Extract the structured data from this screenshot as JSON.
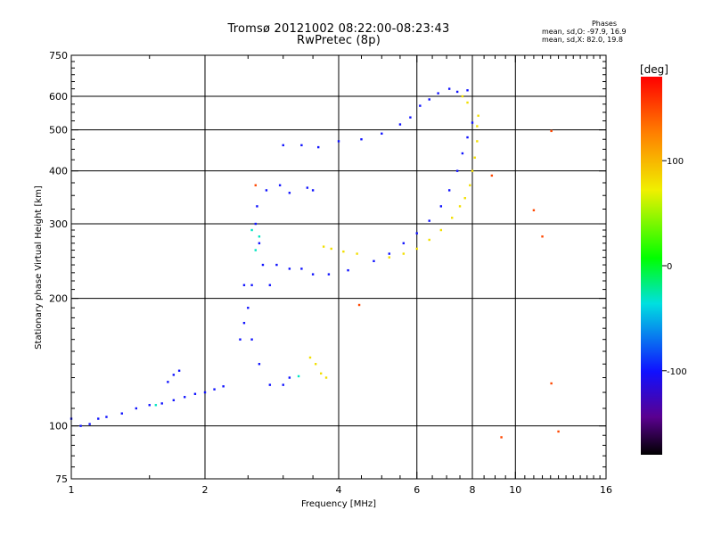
{
  "title": {
    "line1": "Tromsø 20121002 08:22:00-08:23:43",
    "line2": "RwPretec (8p)"
  },
  "stats": {
    "header": "Phases",
    "line_o": "mean, sd,O: -97.9, 16.9",
    "line_x": "mean, sd,X:  82.0, 19.8"
  },
  "colorbar": {
    "unit": "[deg]",
    "ticks": [
      "100",
      "0",
      "-100"
    ],
    "tick_values": [
      100,
      0,
      -100
    ],
    "range": [
      -180,
      180
    ],
    "colormap": "rainbow (black → purple → blue → cyan → green → yellow → orange → red)"
  },
  "chart_data": {
    "type": "scatter",
    "xlabel": "Frequency [MHz]",
    "ylabel": "Stationary phase Virtual Height [km]",
    "xscale": "log",
    "yscale": "log",
    "xlim": [
      1,
      16
    ],
    "ylim": [
      75,
      750
    ],
    "x_ticks": [
      "1",
      "2",
      "4",
      "6",
      "8",
      "10",
      "16"
    ],
    "x_tick_values": [
      1,
      2,
      4,
      6,
      8,
      10,
      16
    ],
    "y_ticks": [
      "750",
      "600",
      "500",
      "400",
      "300",
      "200",
      "100",
      "75"
    ],
    "y_tick_values": [
      750,
      600,
      500,
      400,
      300,
      200,
      100,
      75
    ],
    "grid_x": [
      2,
      4,
      6,
      8,
      10
    ],
    "grid_y": [
      600,
      500,
      400,
      300,
      200,
      100
    ],
    "series": [
      {
        "color_hint": "blue",
        "phase_deg": -100,
        "points": [
          [
            1.0,
            104
          ],
          [
            1.05,
            100
          ],
          [
            1.1,
            101
          ],
          [
            1.15,
            104
          ],
          [
            1.2,
            105
          ],
          [
            1.3,
            107
          ],
          [
            1.4,
            110
          ],
          [
            1.5,
            112
          ],
          [
            1.6,
            113
          ],
          [
            1.7,
            115
          ],
          [
            1.8,
            117
          ],
          [
            1.9,
            119
          ],
          [
            2.0,
            120
          ],
          [
            2.1,
            122
          ],
          [
            2.2,
            124
          ],
          [
            1.65,
            127
          ],
          [
            1.7,
            132
          ],
          [
            1.75,
            135
          ],
          [
            2.4,
            160
          ],
          [
            2.45,
            175
          ],
          [
            2.5,
            190
          ],
          [
            2.55,
            160
          ],
          [
            2.65,
            140
          ],
          [
            2.8,
            125
          ],
          [
            3.0,
            125
          ],
          [
            3.1,
            130
          ],
          [
            2.45,
            215
          ],
          [
            2.55,
            215
          ],
          [
            2.7,
            240
          ],
          [
            2.8,
            215
          ],
          [
            2.6,
            300
          ],
          [
            2.62,
            330
          ],
          [
            2.65,
            270
          ],
          [
            2.9,
            240
          ],
          [
            3.1,
            235
          ],
          [
            3.3,
            235
          ],
          [
            3.5,
            228
          ],
          [
            3.8,
            228
          ],
          [
            4.2,
            233
          ],
          [
            4.8,
            245
          ],
          [
            5.2,
            255
          ],
          [
            5.6,
            270
          ],
          [
            6.0,
            285
          ],
          [
            6.4,
            305
          ],
          [
            6.8,
            330
          ],
          [
            7.1,
            360
          ],
          [
            7.4,
            400
          ],
          [
            7.6,
            440
          ],
          [
            7.8,
            480
          ],
          [
            8.0,
            520
          ],
          [
            3.0,
            460
          ],
          [
            3.3,
            460
          ],
          [
            3.6,
            455
          ],
          [
            4.0,
            470
          ],
          [
            4.5,
            475
          ],
          [
            5.0,
            490
          ],
          [
            5.5,
            515
          ],
          [
            5.8,
            535
          ],
          [
            6.1,
            570
          ],
          [
            6.4,
            590
          ],
          [
            6.7,
            610
          ],
          [
            7.1,
            625
          ],
          [
            7.4,
            615
          ],
          [
            7.8,
            620
          ],
          [
            2.75,
            360
          ],
          [
            2.95,
            370
          ],
          [
            3.1,
            355
          ],
          [
            3.4,
            365
          ],
          [
            3.5,
            360
          ]
        ]
      },
      {
        "color_hint": "yellow-green",
        "phase_deg": 80,
        "points": [
          [
            3.45,
            145
          ],
          [
            3.55,
            140
          ],
          [
            3.65,
            133
          ],
          [
            3.75,
            130
          ],
          [
            3.7,
            265
          ],
          [
            3.85,
            262
          ],
          [
            4.1,
            258
          ],
          [
            4.4,
            255
          ],
          [
            5.2,
            250
          ],
          [
            5.6,
            255
          ],
          [
            6.0,
            262
          ],
          [
            6.4,
            275
          ],
          [
            6.8,
            290
          ],
          [
            7.2,
            310
          ],
          [
            7.5,
            330
          ],
          [
            7.7,
            345
          ],
          [
            7.9,
            370
          ],
          [
            8.0,
            400
          ],
          [
            8.1,
            430
          ],
          [
            8.2,
            470
          ],
          [
            8.2,
            510
          ],
          [
            8.25,
            540
          ],
          [
            7.8,
            580
          ],
          [
            7.6,
            600
          ]
        ]
      },
      {
        "color_hint": "cyan",
        "phase_deg": -30,
        "points": [
          [
            2.55,
            290
          ],
          [
            2.6,
            260
          ],
          [
            2.65,
            280
          ],
          [
            3.25,
            131
          ],
          [
            1.55,
            112
          ]
        ]
      },
      {
        "color_hint": "orange-red",
        "phase_deg": 150,
        "points": [
          [
            2.6,
            370
          ],
          [
            4.45,
            193
          ],
          [
            8.85,
            390
          ],
          [
            9.3,
            94
          ],
          [
            12.05,
            126
          ],
          [
            12.05,
            497
          ],
          [
            11.0,
            323
          ],
          [
            11.5,
            280
          ],
          [
            12.5,
            97
          ]
        ]
      }
    ],
    "colorbar_unit": "[deg]"
  }
}
